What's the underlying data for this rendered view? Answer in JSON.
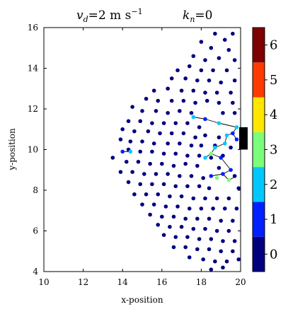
{
  "chart_data": {
    "type": "scatter",
    "title_left": "v_d = 2 m s^{-1}",
    "title_left_parts": {
      "symbol": "v",
      "sub": "d",
      "eq": "=2 m s",
      "sup": "−1"
    },
    "title_right_parts": {
      "symbol": "k",
      "sub": "n",
      "eq": "=0"
    },
    "xlabel": "x-position",
    "ylabel": "y-position",
    "xlim": [
      10,
      20
    ],
    "ylim": [
      4,
      16
    ],
    "xticks": [
      "10",
      "12",
      "14",
      "16",
      "18",
      "20"
    ],
    "yticks": [
      "4",
      "6",
      "8",
      "10",
      "12",
      "14",
      "16"
    ],
    "grid": false,
    "colorbar": {
      "ticks": [
        "0",
        "1",
        "2",
        "3",
        "4",
        "5",
        "6"
      ],
      "colors": [
        "#00007f",
        "#0020ff",
        "#00c8ff",
        "#7bff7b",
        "#ffe600",
        "#ff3a00",
        "#7f0000"
      ]
    },
    "exit": {
      "x": 20,
      "y_min": 10.0,
      "y_max": 11.1,
      "color": "#000000"
    },
    "points": [
      [
        18.7,
        15.7,
        0
      ],
      [
        19.6,
        15.7,
        0
      ],
      [
        19.2,
        15.4,
        0
      ],
      [
        18.0,
        15.3,
        0
      ],
      [
        18.5,
        15.0,
        0
      ],
      [
        19.4,
        14.9,
        0
      ],
      [
        17.6,
        14.6,
        0
      ],
      [
        18.2,
        14.4,
        0
      ],
      [
        18.9,
        14.5,
        0
      ],
      [
        19.7,
        14.4,
        0
      ],
      [
        17.4,
        14.1,
        0
      ],
      [
        18.0,
        13.9,
        0
      ],
      [
        18.6,
        13.9,
        0
      ],
      [
        19.3,
        13.9,
        0
      ],
      [
        16.8,
        13.9,
        0
      ],
      [
        16.5,
        13.5,
        0
      ],
      [
        17.2,
        13.5,
        0
      ],
      [
        17.8,
        13.4,
        0
      ],
      [
        18.4,
        13.4,
        0
      ],
      [
        19.0,
        13.3,
        0
      ],
      [
        19.7,
        13.4,
        0
      ],
      [
        16.3,
        13.0,
        0
      ],
      [
        17.0,
        12.9,
        0
      ],
      [
        17.6,
        12.9,
        0
      ],
      [
        18.2,
        12.8,
        0
      ],
      [
        18.8,
        12.8,
        0
      ],
      [
        19.5,
        12.8,
        0
      ],
      [
        15.6,
        12.9,
        0
      ],
      [
        15.2,
        12.5,
        0
      ],
      [
        15.8,
        12.4,
        0
      ],
      [
        16.5,
        12.4,
        0
      ],
      [
        17.1,
        12.4,
        0
      ],
      [
        17.7,
        12.3,
        0
      ],
      [
        18.3,
        12.4,
        0
      ],
      [
        18.9,
        12.3,
        0
      ],
      [
        19.6,
        12.3,
        0
      ],
      [
        14.5,
        12.1,
        0
      ],
      [
        15.0,
        11.9,
        0
      ],
      [
        15.7,
        11.9,
        0
      ],
      [
        16.3,
        11.8,
        0
      ],
      [
        16.9,
        11.9,
        0
      ],
      [
        17.5,
        11.8,
        0
      ],
      [
        19.1,
        11.8,
        0
      ],
      [
        19.7,
        11.8,
        0
      ],
      [
        14.3,
        11.4,
        0
      ],
      [
        14.9,
        11.4,
        0
      ],
      [
        15.5,
        11.3,
        0
      ],
      [
        16.1,
        11.3,
        0
      ],
      [
        16.7,
        11.3,
        0
      ],
      [
        17.3,
        11.3,
        0
      ],
      [
        17.9,
        11.1,
        0
      ],
      [
        14.0,
        11.0,
        0
      ],
      [
        14.6,
        10.9,
        0
      ],
      [
        15.3,
        10.9,
        0
      ],
      [
        15.9,
        10.8,
        0
      ],
      [
        16.5,
        10.8,
        0
      ],
      [
        17.1,
        10.8,
        0
      ],
      [
        17.7,
        10.6,
        0
      ],
      [
        18.2,
        10.7,
        0
      ],
      [
        18.9,
        10.6,
        0
      ],
      [
        13.9,
        10.5,
        0
      ],
      [
        14.4,
        10.4,
        0
      ],
      [
        15.0,
        10.4,
        0
      ],
      [
        15.6,
        10.3,
        0
      ],
      [
        16.3,
        10.3,
        0
      ],
      [
        16.9,
        10.3,
        0
      ],
      [
        17.5,
        10.2,
        0
      ],
      [
        18.0,
        10.2,
        0
      ],
      [
        18.7,
        10.2,
        0
      ],
      [
        19.5,
        10.1,
        0
      ],
      [
        14.3,
        10.0,
        0
      ],
      [
        14.9,
        9.9,
        0
      ],
      [
        15.5,
        9.9,
        0
      ],
      [
        16.1,
        9.8,
        0
      ],
      [
        16.7,
        9.8,
        0
      ],
      [
        17.3,
        9.7,
        0
      ],
      [
        17.9,
        9.7,
        0
      ],
      [
        18.5,
        9.6,
        0
      ],
      [
        19.1,
        9.7,
        0
      ],
      [
        13.5,
        9.6,
        0
      ],
      [
        14.2,
        9.4,
        0
      ],
      [
        14.8,
        9.4,
        0
      ],
      [
        15.4,
        9.3,
        0
      ],
      [
        16.0,
        9.3,
        0
      ],
      [
        16.6,
        9.2,
        0
      ],
      [
        17.2,
        9.3,
        0
      ],
      [
        17.8,
        9.2,
        0
      ],
      [
        18.9,
        9.1,
        0
      ],
      [
        13.9,
        8.9,
        0
      ],
      [
        14.5,
        8.9,
        0
      ],
      [
        15.1,
        8.8,
        0
      ],
      [
        15.7,
        8.8,
        0
      ],
      [
        16.3,
        8.8,
        0
      ],
      [
        16.9,
        8.7,
        0
      ],
      [
        17.5,
        8.7,
        0
      ],
      [
        18.1,
        8.6,
        0
      ],
      [
        19.7,
        8.7,
        0
      ],
      [
        14.3,
        8.4,
        0
      ],
      [
        14.9,
        8.3,
        0
      ],
      [
        15.5,
        8.3,
        0
      ],
      [
        16.1,
        8.3,
        0
      ],
      [
        16.7,
        8.2,
        0
      ],
      [
        17.3,
        8.2,
        0
      ],
      [
        17.9,
        8.2,
        0
      ],
      [
        18.4,
        8.1,
        0
      ],
      [
        19.9,
        8.1,
        0
      ],
      [
        14.6,
        7.8,
        0
      ],
      [
        15.2,
        7.8,
        0
      ],
      [
        15.8,
        7.8,
        0
      ],
      [
        16.4,
        7.7,
        0
      ],
      [
        17.0,
        7.7,
        0
      ],
      [
        17.6,
        7.6,
        0
      ],
      [
        18.2,
        7.6,
        0
      ],
      [
        18.8,
        7.6,
        0
      ],
      [
        19.4,
        7.6,
        0
      ],
      [
        15.0,
        7.3,
        0
      ],
      [
        15.6,
        7.3,
        0
      ],
      [
        16.2,
        7.2,
        0
      ],
      [
        16.8,
        7.2,
        0
      ],
      [
        17.4,
        7.1,
        0
      ],
      [
        18.0,
        7.1,
        0
      ],
      [
        18.6,
        7.1,
        0
      ],
      [
        19.2,
        7.1,
        0
      ],
      [
        19.8,
        7.1,
        0
      ],
      [
        15.4,
        6.8,
        0
      ],
      [
        16.0,
        6.7,
        0
      ],
      [
        16.6,
        6.7,
        0
      ],
      [
        17.2,
        6.6,
        0
      ],
      [
        17.8,
        6.6,
        0
      ],
      [
        18.4,
        6.6,
        0
      ],
      [
        19.0,
        6.5,
        0
      ],
      [
        19.6,
        6.5,
        0
      ],
      [
        15.8,
        6.3,
        0
      ],
      [
        16.4,
        6.2,
        0
      ],
      [
        17.0,
        6.2,
        0
      ],
      [
        17.6,
        6.1,
        0
      ],
      [
        18.2,
        6.1,
        0
      ],
      [
        18.8,
        6.0,
        0
      ],
      [
        19.4,
        6.0,
        0
      ],
      [
        16.1,
        5.8,
        0
      ],
      [
        16.7,
        5.7,
        0
      ],
      [
        17.3,
        5.7,
        0
      ],
      [
        17.9,
        5.6,
        0
      ],
      [
        18.5,
        5.6,
        0
      ],
      [
        19.1,
        5.5,
        0
      ],
      [
        19.7,
        5.5,
        0
      ],
      [
        16.6,
        5.2,
        0
      ],
      [
        17.2,
        5.2,
        0
      ],
      [
        17.8,
        5.1,
        0
      ],
      [
        18.4,
        5.1,
        0
      ],
      [
        19.0,
        5.0,
        0
      ],
      [
        19.6,
        5.0,
        0
      ],
      [
        17.4,
        4.7,
        0
      ],
      [
        18.1,
        4.6,
        0
      ],
      [
        18.7,
        4.5,
        0
      ],
      [
        19.3,
        4.5,
        0
      ],
      [
        19.9,
        4.6,
        0
      ],
      [
        18.5,
        4.1,
        0
      ],
      [
        19.1,
        4.2,
        0
      ],
      [
        17.6,
        11.6,
        2
      ],
      [
        18.2,
        11.5,
        1
      ],
      [
        18.9,
        11.3,
        2
      ],
      [
        19.8,
        11.1,
        2
      ],
      [
        19.6,
        10.8,
        1
      ],
      [
        19.3,
        10.7,
        2
      ],
      [
        19.2,
        10.3,
        2
      ],
      [
        18.7,
        10.1,
        2
      ],
      [
        18.5,
        9.8,
        3
      ],
      [
        18.2,
        9.6,
        2
      ],
      [
        19.0,
        9.6,
        1
      ],
      [
        19.5,
        9.0,
        1
      ],
      [
        19.1,
        8.8,
        1
      ],
      [
        18.5,
        8.7,
        1
      ],
      [
        19.4,
        8.5,
        3
      ],
      [
        18.8,
        8.6,
        3
      ],
      [
        19.8,
        10.5,
        1
      ],
      [
        14.0,
        9.9,
        1
      ],
      [
        14.4,
        9.9,
        2
      ]
    ],
    "links": [
      [
        17.6,
        11.6,
        18.2,
        11.5
      ],
      [
        18.2,
        11.5,
        18.9,
        11.3
      ],
      [
        18.9,
        11.3,
        19.8,
        11.1
      ],
      [
        19.8,
        11.1,
        19.6,
        10.8
      ],
      [
        19.6,
        10.8,
        19.3,
        10.7
      ],
      [
        19.3,
        10.7,
        19.2,
        10.3
      ],
      [
        19.2,
        10.3,
        18.7,
        10.1
      ],
      [
        18.7,
        10.1,
        18.5,
        9.8
      ],
      [
        18.5,
        9.8,
        18.2,
        9.6
      ],
      [
        18.5,
        9.8,
        19.0,
        9.6
      ],
      [
        19.0,
        9.6,
        19.5,
        9.0
      ],
      [
        19.5,
        9.0,
        19.1,
        8.8
      ],
      [
        19.1,
        8.8,
        18.5,
        8.7
      ],
      [
        19.1,
        8.8,
        19.4,
        8.5
      ],
      [
        19.4,
        8.5,
        19.8,
        8.7
      ],
      [
        14.0,
        9.9,
        14.4,
        9.9
      ],
      [
        19.8,
        10.5,
        19.6,
        10.8
      ]
    ]
  }
}
